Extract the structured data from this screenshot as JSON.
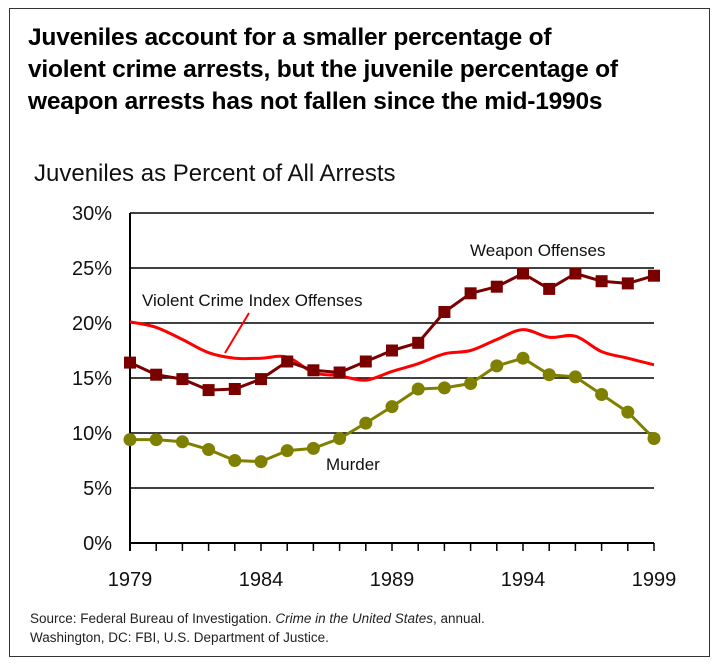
{
  "title": "Juveniles account for a smaller percentage of violent crime arrests, but the juvenile percentage of weapon arrests has not fallen since the mid-1990s",
  "title_lines": [
    "Juveniles account for a smaller percentage of",
    "violent crime arrests, but the juvenile percentage of",
    "weapon arrests has not fallen since the mid-1990s"
  ],
  "source": {
    "prefix": "Source: Federal Bureau of Investigation. ",
    "italic": "Crime in the United States",
    "suffix": ", annual.",
    "line2": "Washington, DC: FBI, U.S. Department of Justice."
  },
  "chart_data": {
    "type": "line",
    "title": "Juveniles as Percent of All Arrests",
    "xlabel": "",
    "ylabel": "",
    "x": [
      1979,
      1980,
      1981,
      1982,
      1983,
      1984,
      1985,
      1986,
      1987,
      1988,
      1989,
      1990,
      1991,
      1992,
      1993,
      1994,
      1995,
      1996,
      1997,
      1998,
      1999
    ],
    "xlim": [
      1979,
      1999
    ],
    "ylim": [
      0,
      30
    ],
    "x_tick_labels": [
      "1979",
      "1984",
      "1989",
      "1994",
      "1999"
    ],
    "x_tick_values": [
      1979,
      1984,
      1989,
      1994,
      1999
    ],
    "y_tick_labels": [
      "0%",
      "5%",
      "10%",
      "15%",
      "20%",
      "25%",
      "30%"
    ],
    "y_tick_values": [
      0,
      5,
      10,
      15,
      20,
      25,
      30
    ],
    "grid": "horizontal",
    "legend": "none (inline annotations)",
    "series": [
      {
        "name": "Weapon Offenses",
        "label_text": "Weapon Offenses",
        "color": "#7a0000",
        "marker": "square",
        "values": [
          16.4,
          15.3,
          14.9,
          13.9,
          14.0,
          14.9,
          16.5,
          15.7,
          15.5,
          16.5,
          17.5,
          18.2,
          21.0,
          22.7,
          23.3,
          24.5,
          23.1,
          24.5,
          23.8,
          23.6,
          24.3
        ]
      },
      {
        "name": "Violent Crime Index Offenses",
        "label_text": "Violent Crime Index Offenses",
        "color": "#ff0000",
        "marker": "none",
        "values": [
          20.1,
          19.6,
          18.5,
          17.3,
          16.8,
          16.8,
          16.9,
          15.5,
          15.2,
          14.8,
          15.6,
          16.3,
          17.2,
          17.5,
          18.5,
          19.4,
          18.7,
          18.8,
          17.4,
          16.8,
          16.2
        ]
      },
      {
        "name": "Murder",
        "label_text": "Murder",
        "color": "#808000",
        "marker": "circle",
        "values": [
          9.4,
          9.4,
          9.2,
          8.5,
          7.5,
          7.4,
          8.4,
          8.6,
          9.5,
          10.9,
          12.4,
          14.0,
          14.1,
          14.5,
          16.1,
          16.8,
          15.3,
          15.1,
          13.5,
          11.9,
          9.5
        ]
      }
    ]
  }
}
